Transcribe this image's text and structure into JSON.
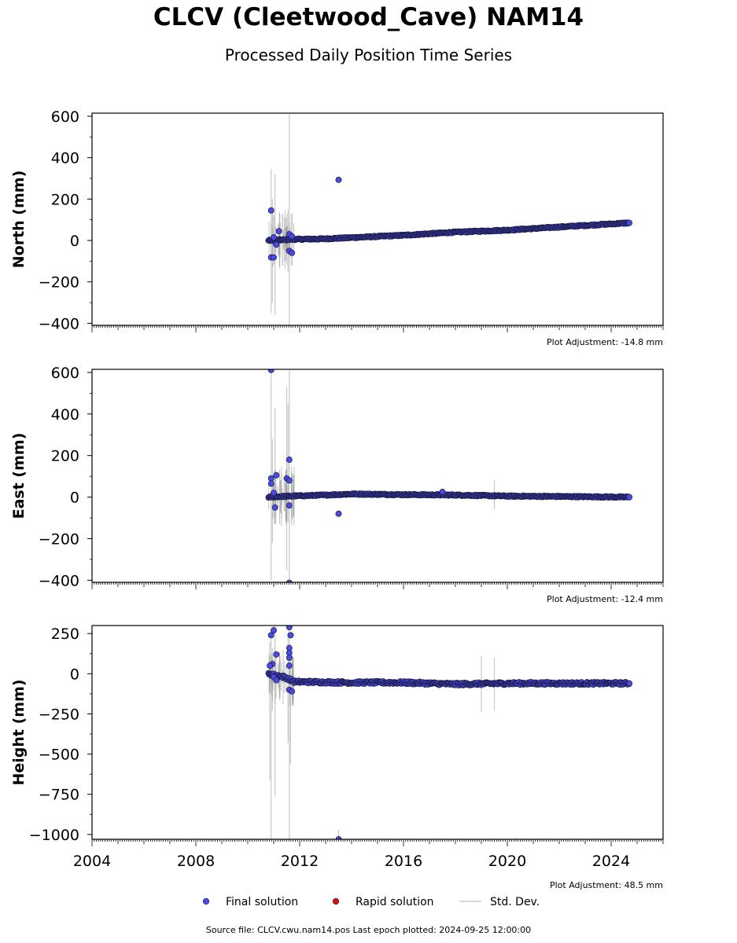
{
  "title": "CLCV (Cleetwood_Cave) NAM14",
  "subtitle": "Processed Daily Position Time Series",
  "source_note": "Source file: CLCV.cwu.nam14.pos  Last epoch plotted: 2024-09-25 12:00:00",
  "legend": [
    {
      "label": "Final solution",
      "kind": "dot",
      "color": "#4a4ae6"
    },
    {
      "label": "Rapid solution",
      "kind": "dot",
      "color": "#dd1111"
    },
    {
      "label": "Std. Dev.",
      "kind": "line",
      "color": "#cccccc"
    }
  ],
  "colors": {
    "final": "#4a4ae6",
    "final_edge": "#1a1a40",
    "stddev": "#c8c8c8",
    "dense": "#222244"
  },
  "chart_data": [
    {
      "type": "scatter",
      "ylabel": "North (mm)",
      "ylim": [
        -410,
        615
      ],
      "yticks": [
        -400,
        -200,
        0,
        200,
        400,
        600
      ],
      "xlim": [
        2004,
        2026
      ],
      "adjustment": "Plot Adjustment: -14.8 mm",
      "trend": [
        [
          2010.8,
          0
        ],
        [
          2011.7,
          5
        ],
        [
          2013,
          8
        ],
        [
          2016,
          25
        ],
        [
          2018,
          40
        ],
        [
          2020,
          50
        ],
        [
          2022,
          65
        ],
        [
          2024.7,
          85
        ]
      ],
      "scatter": 3,
      "outliers": [
        [
          2010.9,
          145
        ],
        [
          2010.9,
          -82
        ],
        [
          2011.0,
          -82
        ],
        [
          2011.2,
          45
        ],
        [
          2011.0,
          15
        ],
        [
          2011.1,
          -20
        ],
        [
          2011.6,
          -50
        ],
        [
          2011.7,
          -60
        ],
        [
          2011.6,
          30
        ],
        [
          2011.7,
          20
        ],
        [
          2013.5,
          293
        ],
        [
          2024.7,
          85
        ]
      ],
      "errorbars": [
        [
          2010.9,
          -350,
          345
        ],
        [
          2011.05,
          -360,
          320
        ],
        [
          2010.95,
          -300,
          200
        ],
        [
          2011.6,
          -410,
          610
        ],
        [
          2011.55,
          -150,
          150
        ]
      ]
    },
    {
      "type": "scatter",
      "ylabel": "East (mm)",
      "ylim": [
        -410,
        615
      ],
      "yticks": [
        -400,
        -200,
        0,
        200,
        400,
        600
      ],
      "xlim": [
        2004,
        2026
      ],
      "adjustment": "Plot Adjustment: -12.4 mm",
      "trend": [
        [
          2010.8,
          0
        ],
        [
          2011.7,
          5
        ],
        [
          2013,
          10
        ],
        [
          2014,
          15
        ],
        [
          2016,
          12
        ],
        [
          2018,
          10
        ],
        [
          2020,
          5
        ],
        [
          2022,
          3
        ],
        [
          2024.7,
          0
        ]
      ],
      "scatter": 3,
      "outliers": [
        [
          2010.9,
          612
        ],
        [
          2010.9,
          90
        ],
        [
          2010.9,
          65
        ],
        [
          2011.1,
          105
        ],
        [
          2011.05,
          -50
        ],
        [
          2011.0,
          20
        ],
        [
          2011.5,
          90
        ],
        [
          2011.6,
          180
        ],
        [
          2011.6,
          80
        ],
        [
          2011.6,
          -40
        ],
        [
          2011.6,
          -412
        ],
        [
          2013.5,
          -80
        ],
        [
          2017.5,
          25
        ],
        [
          2024.7,
          0
        ]
      ],
      "errorbars": [
        [
          2010.9,
          -400,
          610
        ],
        [
          2011.05,
          -130,
          430
        ],
        [
          2010.95,
          -220,
          280
        ],
        [
          2011.6,
          -410,
          610
        ],
        [
          2011.5,
          -350,
          530
        ],
        [
          2011.55,
          -120,
          450
        ],
        [
          2019.5,
          -60,
          80
        ]
      ]
    },
    {
      "type": "scatter",
      "ylabel": "Height (mm)",
      "ylim": [
        -1030,
        300
      ],
      "yticks": [
        -1000,
        -750,
        -500,
        -250,
        0,
        250
      ],
      "xlim": [
        2004,
        2026
      ],
      "xticks": [
        2004,
        2008,
        2012,
        2016,
        2020,
        2024
      ],
      "adjustment": "Plot Adjustment: 48.5 mm",
      "trend": [
        [
          2010.8,
          0
        ],
        [
          2011.4,
          -20
        ],
        [
          2011.8,
          -50
        ],
        [
          2014,
          -55
        ],
        [
          2016,
          -55
        ],
        [
          2018,
          -65
        ],
        [
          2020,
          -60
        ],
        [
          2022,
          -60
        ],
        [
          2024.7,
          -60
        ]
      ],
      "scatter": 8,
      "outliers": [
        [
          2010.9,
          240
        ],
        [
          2011.0,
          270
        ],
        [
          2011.1,
          120
        ],
        [
          2010.95,
          60
        ],
        [
          2010.85,
          50
        ],
        [
          2011.0,
          -20
        ],
        [
          2011.1,
          -40
        ],
        [
          2011.6,
          290
        ],
        [
          2011.65,
          240
        ],
        [
          2011.6,
          160
        ],
        [
          2011.6,
          130
        ],
        [
          2011.6,
          100
        ],
        [
          2011.6,
          50
        ],
        [
          2011.6,
          -100
        ],
        [
          2011.7,
          -110
        ],
        [
          2013.5,
          -1030
        ],
        [
          2024.7,
          -60
        ]
      ],
      "errorbars": [
        [
          2010.85,
          -660,
          200
        ],
        [
          2010.9,
          -1030,
          280
        ],
        [
          2011.05,
          -760,
          300
        ],
        [
          2010.95,
          -230,
          100
        ],
        [
          2011.6,
          -1030,
          300
        ],
        [
          2011.55,
          -430,
          250
        ],
        [
          2011.65,
          -560,
          150
        ],
        [
          2019.0,
          -240,
          110
        ],
        [
          2019.5,
          -230,
          100
        ],
        [
          2013.5,
          -1030,
          -970
        ]
      ]
    }
  ]
}
